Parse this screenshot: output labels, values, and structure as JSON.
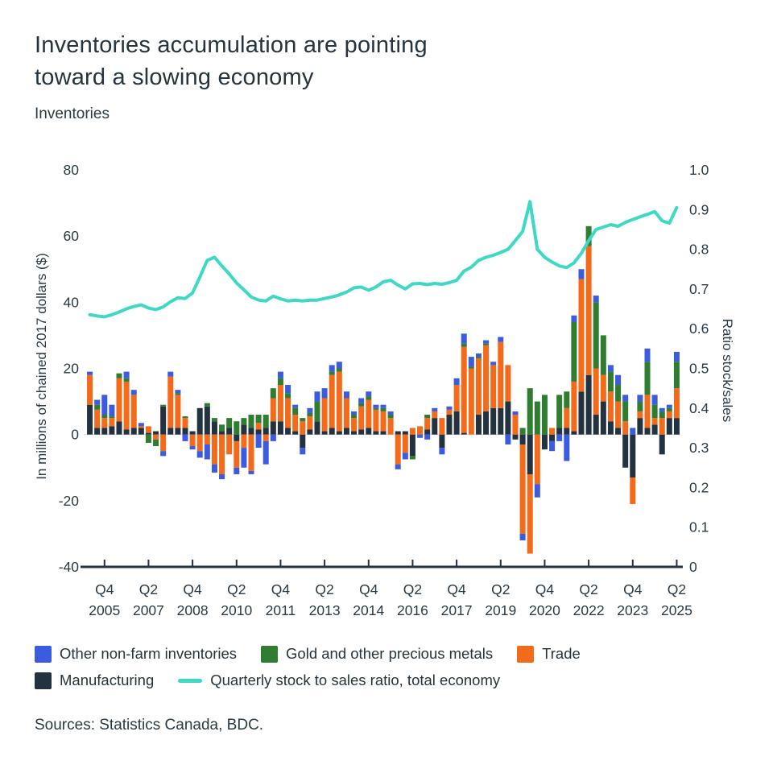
{
  "header": {
    "title_line1": "Inventories accumulation are pointing",
    "title_line2": "toward a slowing economy",
    "subtitle": "Inventories"
  },
  "footer": {
    "sources": "Sources: Statistics Canada, BDC."
  },
  "colors": {
    "background": "#ffffff",
    "text": "#25343F",
    "axis": "#223240",
    "other_nonfarm_blue": "#3B5BE1",
    "gold_green": "#2F7D31",
    "trade_orange": "#F26A1A",
    "manufacturing_navy": "#223240",
    "ratio_teal": "#3ED9C4"
  },
  "legend": {
    "items": [
      {
        "label": "Other non-farm inventories",
        "swatch": "square",
        "color": "#3B5BE1"
      },
      {
        "label": "Gold and other precious metals",
        "swatch": "square",
        "color": "#2F7D31"
      },
      {
        "label": "Trade",
        "swatch": "square",
        "color": "#F26A1A"
      },
      {
        "label": "Manufacturing",
        "swatch": "square",
        "color": "#223240"
      },
      {
        "label": "Quarterly stock to sales ratio, total economy",
        "swatch": "line",
        "color": "#3ED9C4"
      }
    ]
  },
  "chart_data": {
    "type": "bar",
    "stacked": true,
    "title": "Inventories",
    "categories": [
      "Q2 2005",
      "Q3 2005",
      "Q4 2005",
      "Q1 2006",
      "Q2 2006",
      "Q3 2006",
      "Q4 2006",
      "Q1 2007",
      "Q2 2007",
      "Q3 2007",
      "Q4 2007",
      "Q1 2008",
      "Q2 2008",
      "Q3 2008",
      "Q4 2008",
      "Q1 2009",
      "Q2 2009",
      "Q3 2009",
      "Q4 2009",
      "Q1 2010",
      "Q2 2010",
      "Q3 2010",
      "Q4 2010",
      "Q1 2011",
      "Q2 2011",
      "Q3 2011",
      "Q4 2011",
      "Q1 2012",
      "Q2 2012",
      "Q3 2012",
      "Q4 2012",
      "Q1 2013",
      "Q2 2013",
      "Q3 2013",
      "Q4 2013",
      "Q1 2014",
      "Q2 2014",
      "Q3 2014",
      "Q4 2014",
      "Q1 2015",
      "Q2 2015",
      "Q3 2015",
      "Q4 2015",
      "Q1 2016",
      "Q2 2016",
      "Q3 2016",
      "Q4 2016",
      "Q1 2017",
      "Q2 2017",
      "Q3 2017",
      "Q4 2017",
      "Q1 2018",
      "Q2 2018",
      "Q3 2018",
      "Q4 2018",
      "Q1 2019",
      "Q2 2019",
      "Q3 2019",
      "Q4 2019",
      "Q1 2020",
      "Q2 2020",
      "Q3 2020",
      "Q4 2020",
      "Q1 2021",
      "Q2 2021",
      "Q3 2021",
      "Q4 2021",
      "Q1 2022",
      "Q2 2022",
      "Q3 2022",
      "Q4 2022",
      "Q1 2023",
      "Q2 2023",
      "Q3 2023",
      "Q4 2023",
      "Q1 2024",
      "Q2 2024",
      "Q3 2024",
      "Q4 2024",
      "Q1 2025",
      "Q2 2025"
    ],
    "series": [
      {
        "name": "Manufacturing",
        "color": "#223240",
        "values": [
          9,
          2,
          2,
          2.5,
          4,
          1.5,
          2,
          2,
          0.5,
          1,
          8.5,
          2,
          2,
          2,
          1,
          8,
          8.5,
          4,
          1,
          2,
          -2,
          3,
          2,
          1.5,
          2,
          4,
          4,
          2,
          1,
          -4,
          1.5,
          4,
          1,
          2,
          1,
          2,
          1,
          1.5,
          2,
          1,
          1,
          0,
          1,
          1,
          -6.5,
          0,
          1.5,
          5,
          -4,
          6,
          7,
          0.5,
          0,
          6,
          7,
          8,
          8,
          10,
          -1.5,
          -3,
          -12,
          0,
          -4.5,
          -2,
          2,
          2,
          1,
          13,
          18,
          6,
          10,
          4,
          2,
          -10,
          -13,
          5,
          2,
          3,
          -6,
          5,
          5
        ]
      },
      {
        "name": "Trade",
        "color": "#F26A1A",
        "values": [
          9,
          5.5,
          3,
          2.5,
          13,
          14.5,
          10,
          0.5,
          2,
          -1.5,
          -5,
          15.5,
          10,
          3,
          -3.5,
          -5,
          -3,
          -9,
          -12,
          -6,
          -8,
          -4,
          -11,
          2,
          -2,
          7,
          11,
          9,
          5,
          4,
          4,
          0,
          10,
          16,
          18,
          9,
          4,
          7,
          8.5,
          6.5,
          6,
          5,
          -9,
          -5.5,
          2,
          2.5,
          3.5,
          2,
          5,
          1.5,
          8,
          26,
          20,
          17,
          20,
          13,
          20,
          11,
          6,
          -27,
          -24,
          -15,
          0,
          2,
          0,
          6,
          15,
          34,
          39,
          14,
          8,
          9,
          8,
          4,
          -8,
          2,
          10,
          2,
          5,
          2,
          9
        ]
      },
      {
        "name": "Gold and other precious metals",
        "color": "#2F7D31",
        "values": [
          0,
          1.5,
          1,
          0.5,
          1.5,
          1,
          0,
          0,
          -2.5,
          -2,
          0.5,
          0,
          0.5,
          0.5,
          0,
          0,
          1,
          1,
          2,
          3,
          4,
          2,
          4,
          2.5,
          4,
          3,
          2,
          1.5,
          2,
          1,
          1,
          6,
          0,
          1,
          1,
          0,
          1,
          1,
          1,
          0.5,
          1,
          1,
          0,
          0,
          -1,
          0,
          1,
          0,
          0,
          0,
          0,
          1,
          0.5,
          0.5,
          0.5,
          0,
          0,
          0,
          0,
          2,
          14,
          10,
          12,
          0,
          10,
          5,
          18,
          0,
          6,
          20,
          12,
          6,
          5,
          6,
          0,
          3,
          10,
          4,
          2,
          1,
          8
        ]
      },
      {
        "name": "Other non-farm inventories",
        "color": "#3B5BE1",
        "values": [
          1,
          1.5,
          6,
          3.5,
          0,
          2,
          1.5,
          1,
          0,
          0,
          -1.5,
          1.5,
          1,
          -2,
          -1,
          -2,
          -4.5,
          -2.5,
          -1.5,
          0,
          -2,
          -6,
          -1,
          -4,
          -7,
          -2,
          2,
          2.5,
          1,
          -2,
          1.5,
          3,
          3,
          2,
          2,
          2,
          1,
          1.5,
          1.5,
          1,
          1,
          1,
          -1.5,
          -2,
          0,
          -1,
          -1.5,
          1,
          -2,
          1,
          2,
          3,
          3,
          1,
          1,
          1,
          1.5,
          -3,
          1,
          -2,
          0,
          -4,
          0,
          -3,
          -2,
          -8,
          2,
          3,
          0,
          2,
          0,
          2,
          3,
          2,
          2,
          2,
          4,
          3,
          1,
          1,
          3
        ]
      }
    ],
    "line": {
      "name": "Quarterly stock to sales ratio, total economy",
      "color": "#3ED9C4",
      "axis": "right",
      "values": [
        0.635,
        0.632,
        0.63,
        0.635,
        0.642,
        0.65,
        0.656,
        0.66,
        0.652,
        0.648,
        0.655,
        0.668,
        0.678,
        0.676,
        0.69,
        0.73,
        0.772,
        0.78,
        0.758,
        0.738,
        0.715,
        0.698,
        0.68,
        0.672,
        0.67,
        0.682,
        0.675,
        0.67,
        0.672,
        0.67,
        0.672,
        0.672,
        0.676,
        0.68,
        0.685,
        0.692,
        0.703,
        0.705,
        0.697,
        0.705,
        0.718,
        0.722,
        0.71,
        0.7,
        0.713,
        0.714,
        0.711,
        0.714,
        0.712,
        0.716,
        0.722,
        0.745,
        0.755,
        0.772,
        0.78,
        0.785,
        0.792,
        0.8,
        0.822,
        0.845,
        0.92,
        0.8,
        0.78,
        0.768,
        0.758,
        0.754,
        0.766,
        0.79,
        0.822,
        0.85,
        0.856,
        0.862,
        0.858,
        0.868,
        0.875,
        0.882,
        0.888,
        0.895,
        0.872,
        0.866,
        0.905
      ]
    },
    "axes": {
      "left": {
        "label": "In millions of chained 2017 dollars ($)",
        "min": -40,
        "max": 80,
        "ticks": [
          80,
          60,
          40,
          20,
          0,
          -20,
          -40
        ]
      },
      "right": {
        "label": "Ratio stock/sales",
        "min": 0,
        "max": 1,
        "ticks": [
          "1.0",
          "0.9",
          "0.8",
          "0.7",
          "0.6",
          "0.5",
          "0.4",
          "0.3",
          "0.2",
          "0.1",
          "0"
        ]
      },
      "x": {
        "ticks": [
          {
            "index": 2,
            "quarter": "Q4",
            "year": "2005"
          },
          {
            "index": 8,
            "quarter": "Q2",
            "year": "2007"
          },
          {
            "index": 14,
            "quarter": "Q4",
            "year": "2008"
          },
          {
            "index": 20,
            "quarter": "Q2",
            "year": "2010"
          },
          {
            "index": 26,
            "quarter": "Q4",
            "year": "2011"
          },
          {
            "index": 32,
            "quarter": "Q2",
            "year": "2013"
          },
          {
            "index": 38,
            "quarter": "Q4",
            "year": "2014"
          },
          {
            "index": 44,
            "quarter": "Q2",
            "year": "2016"
          },
          {
            "index": 50,
            "quarter": "Q4",
            "year": "2017"
          },
          {
            "index": 56,
            "quarter": "Q2",
            "year": "2019"
          },
          {
            "index": 62,
            "quarter": "Q4",
            "year": "2020"
          },
          {
            "index": 68,
            "quarter": "Q2",
            "year": "2022"
          },
          {
            "index": 74,
            "quarter": "Q4",
            "year": "2023"
          },
          {
            "index": 80,
            "quarter": "Q2",
            "year": "2025"
          }
        ]
      }
    }
  }
}
